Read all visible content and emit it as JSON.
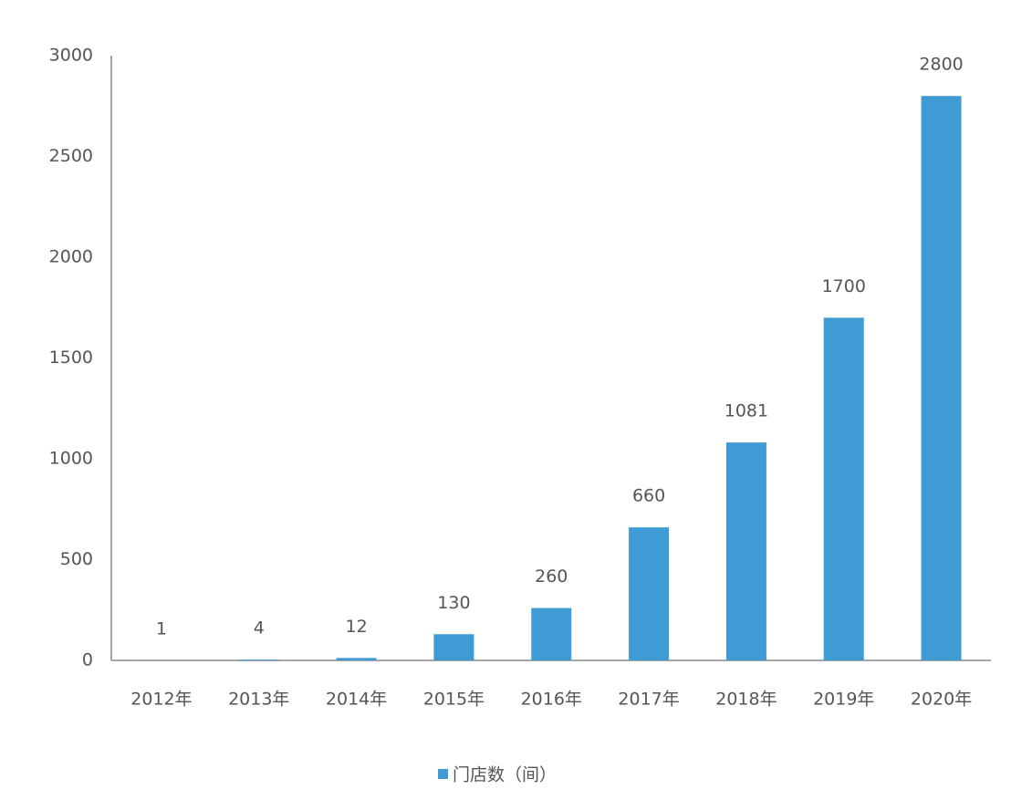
{
  "chart_data": {
    "type": "bar",
    "categories": [
      "2012年",
      "2013年",
      "2014年",
      "2015年",
      "2016年",
      "2017年",
      "2018年",
      "2019年",
      "2020年"
    ],
    "series": [
      {
        "name": "门店数（间）",
        "color": "#3f9bd4",
        "values": [
          1,
          4,
          12,
          130,
          260,
          660,
          1081,
          1700,
          2800
        ]
      }
    ],
    "ylim": [
      0,
      3000
    ],
    "yticks": [
      0,
      500,
      1000,
      1500,
      2000,
      2500,
      3000
    ],
    "grid": false,
    "legend": "bottom"
  }
}
